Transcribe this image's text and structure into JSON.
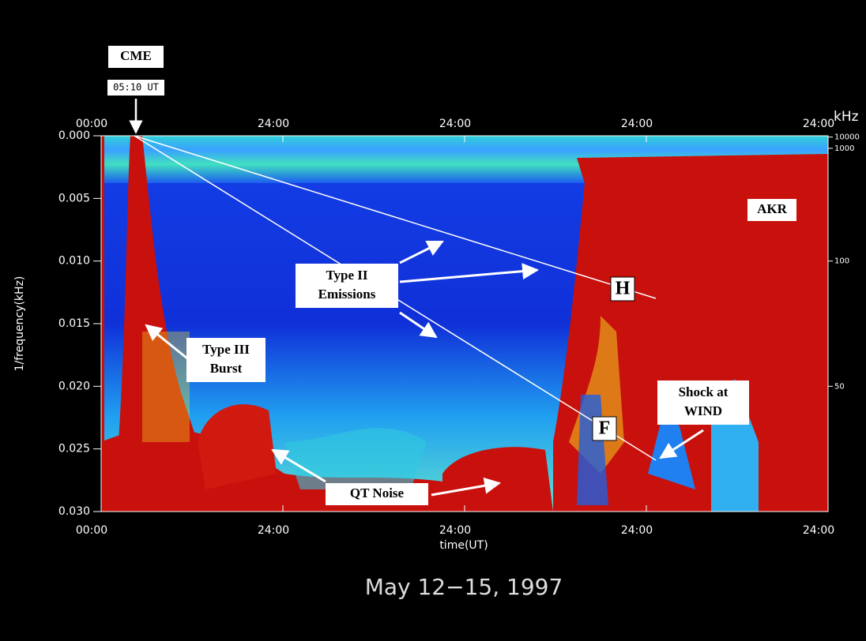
{
  "chart_data": {
    "type": "spectrogram",
    "title": "May 12−15, 1997",
    "xlabel": "time(UT)",
    "ylabel": "1/frequency(kHz)",
    "y2label": "kHz",
    "xlim": [
      0,
      96
    ],
    "xticks": [
      {
        "value": 0,
        "label": "00:00"
      },
      {
        "value": 24,
        "label": "24:00"
      },
      {
        "value": 48,
        "label": "24:00"
      },
      {
        "value": 72,
        "label": "24:00"
      },
      {
        "value": 96,
        "label": "24:00"
      }
    ],
    "ylim": [
      0.03,
      0.0
    ],
    "yticks": [
      {
        "value": 0.0,
        "label": "0.000"
      },
      {
        "value": 0.005,
        "label": "0.005"
      },
      {
        "value": 0.01,
        "label": "0.010"
      },
      {
        "value": 0.015,
        "label": "0.015"
      },
      {
        "value": 0.02,
        "label": "0.020"
      },
      {
        "value": 0.025,
        "label": "0.025"
      },
      {
        "value": 0.03,
        "label": "0.030"
      }
    ],
    "y2ticks": [
      10000,
      1000,
      100,
      50
    ],
    "annotations": [
      "CME",
      "05:10 UT",
      "Type II",
      "Emissions",
      "Type III",
      "Burst",
      "QT Noise",
      "H",
      "F",
      "Shock at",
      "WIND",
      "AKR"
    ]
  }
}
